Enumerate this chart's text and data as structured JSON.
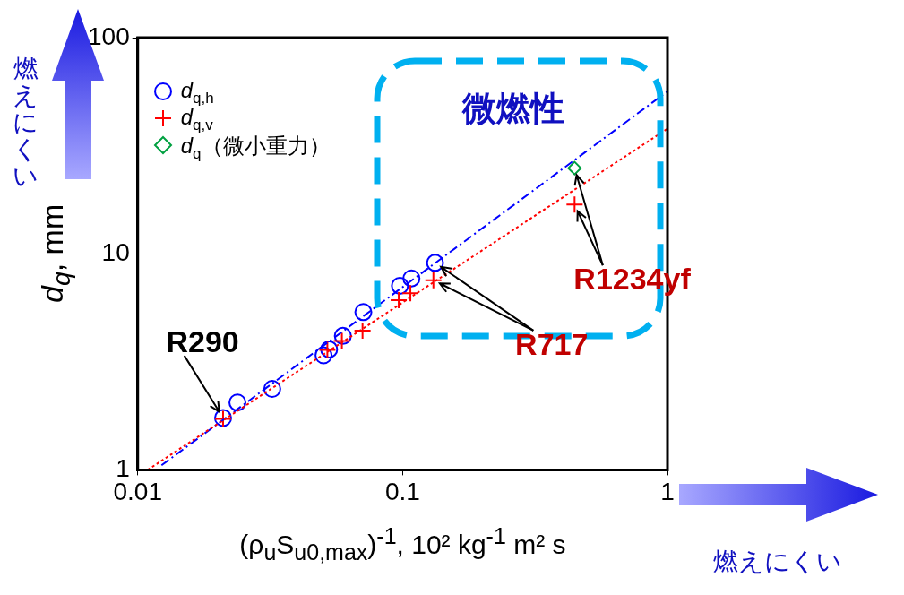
{
  "chart_data": {
    "type": "scatter",
    "xlabel": "(ρ$_{u}$S$_{u0,max}$)$^{-1}$, 10² kg$^{-1}$ m² s",
    "ylabel": "d$_{q}$, mm",
    "log": "xy",
    "xlim": [
      0.01,
      1
    ],
    "ylim": [
      1,
      100
    ],
    "xticks": [
      0.01,
      0.1,
      1
    ],
    "yticks": [
      1,
      10,
      100
    ],
    "grid": false,
    "legend": "top left",
    "series": [
      {
        "name": "d$_{q,h}$",
        "marker": "circle",
        "color": "#0000ff",
        "x": [
          0.021,
          0.0238,
          0.0322,
          0.0503,
          0.0528,
          0.0595,
          0.0711,
          0.0977,
          0.108,
          0.1326
        ],
        "values": [
          1.74,
          2.05,
          2.37,
          3.39,
          3.61,
          4.17,
          5.37,
          7.11,
          7.69,
          9.08
        ]
      },
      {
        "name": "d$_{q,v}$",
        "marker": "cross",
        "color": "#ff0000",
        "x": [
          0.021,
          0.052,
          0.059,
          0.0706,
          0.0967,
          0.107,
          0.1307,
          0.446
        ],
        "values": [
          1.72,
          3.59,
          3.95,
          4.41,
          6.1,
          6.56,
          7.55,
          16.9
        ]
      },
      {
        "name": "d$_{q}$（微小重力）",
        "marker": "diamond",
        "color": "#00a040",
        "x": [
          0.446
        ],
        "values": [
          24.9
        ]
      },
      {
        "type": "line",
        "marker": "none",
        "line_style": "dashed",
        "color": "#0000ff",
        "x": [
          0.0123,
          1
        ],
        "values": [
          1.05,
          56.4
        ]
      },
      {
        "type": "line",
        "marker": "none",
        "line_style": "dotted",
        "color": "#ff0000",
        "x": [
          0.0109,
          1
        ],
        "values": [
          1.0,
          37.9
        ]
      }
    ],
    "annotations": [
      {
        "text": "R290",
        "x": 0.021,
        "y": 1.74
      },
      {
        "text": "R717",
        "x": 0.1326,
        "y": 9.08
      },
      {
        "text": "R1234yf",
        "x": 0.446,
        "y": 24.9
      },
      "微燃性",
      "燃えにくい",
      "燃えにくい"
    ]
  }
}
